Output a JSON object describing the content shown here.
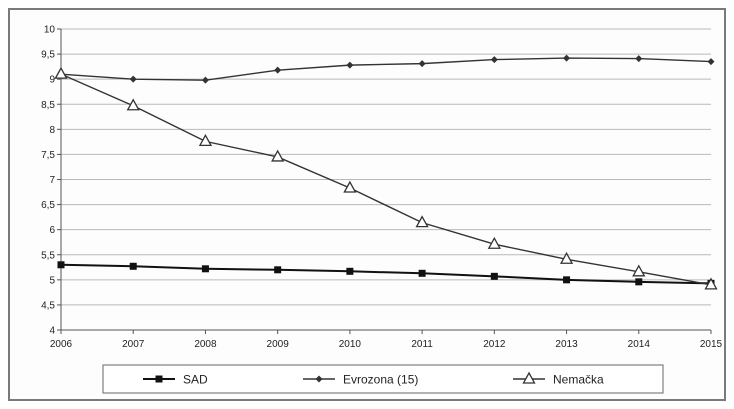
{
  "chart_data": {
    "type": "line",
    "x": [
      "2006",
      "2007",
      "2008",
      "2009",
      "2010",
      "2011",
      "2012",
      "2013",
      "2014",
      "2015"
    ],
    "ylim": [
      4,
      10
    ],
    "y_ticks": [
      "4",
      "4,5",
      "5",
      "5,5",
      "6",
      "6,5",
      "7",
      "7,5",
      "8",
      "8,5",
      "9",
      "9,5",
      "10"
    ],
    "grid": true,
    "legend_position": "bottom",
    "series": [
      {
        "name": "SAD",
        "marker": "square",
        "color": "#111111",
        "values": [
          5.3,
          5.27,
          5.22,
          5.2,
          5.17,
          5.13,
          5.07,
          5.0,
          4.96,
          4.93
        ]
      },
      {
        "name": "Evrozona (15)",
        "marker": "diamond",
        "color": "#333333",
        "values": [
          9.1,
          9.0,
          8.98,
          9.18,
          9.28,
          9.31,
          9.39,
          9.42,
          9.41,
          9.35
        ]
      },
      {
        "name": "Nemačka",
        "marker": "triangle",
        "color": "#333333",
        "values": [
          9.1,
          8.47,
          7.76,
          7.45,
          6.83,
          6.14,
          5.71,
          5.41,
          5.16,
          4.9
        ]
      }
    ]
  }
}
